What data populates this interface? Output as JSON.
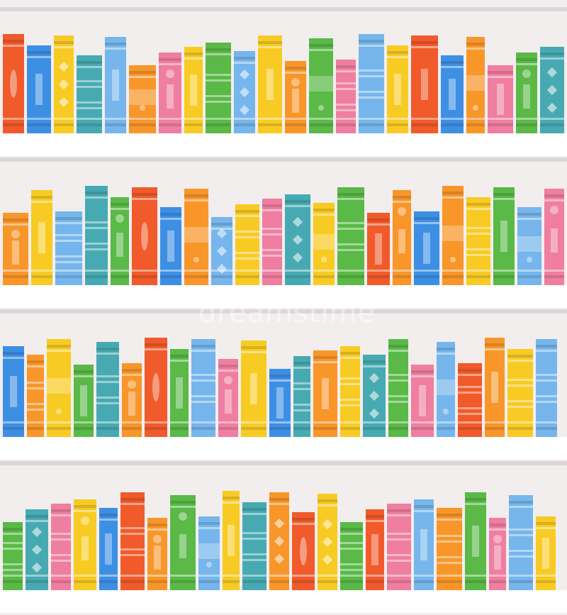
{
  "watermark": "dreamstime",
  "colors": {
    "red": "#f15a2b",
    "blue": "#3d8fe4",
    "lightblue": "#76b6ec",
    "yellow": "#f8cb24",
    "teal": "#47aab2",
    "orange": "#f8962a",
    "pink": "#ef7ea1",
    "green": "#5ab947",
    "background": "#f2eeee",
    "shelf": "#ffffff"
  },
  "shelves": [
    {
      "books": [
        {
          "color": "red",
          "deco": "oval"
        },
        {
          "color": "blue",
          "deco": "pane"
        },
        {
          "color": "yellow",
          "deco": "diamond"
        },
        {
          "color": "teal",
          "deco": "bars"
        },
        {
          "color": "lightblue",
          "deco": "pane"
        },
        {
          "color": "orange",
          "deco": "bands"
        },
        {
          "color": "pink",
          "deco": "dot"
        },
        {
          "color": "yellow",
          "deco": "pane"
        },
        {
          "color": "green",
          "deco": "bars"
        },
        {
          "color": "lightblue",
          "deco": "diamond"
        },
        {
          "color": "yellow",
          "deco": "pane"
        },
        {
          "color": "orange",
          "deco": "dot"
        },
        {
          "color": "green",
          "deco": "bands"
        },
        {
          "color": "pink",
          "deco": "bars"
        },
        {
          "color": "lightblue",
          "deco": "bars"
        },
        {
          "color": "yellow",
          "deco": "pane"
        },
        {
          "color": "red",
          "deco": "pane"
        },
        {
          "color": "blue",
          "deco": "pane"
        },
        {
          "color": "orange",
          "deco": "bands"
        },
        {
          "color": "pink",
          "deco": "pane"
        },
        {
          "color": "green",
          "deco": "dot"
        },
        {
          "color": "teal",
          "deco": "diamond"
        }
      ]
    },
    {
      "books": [
        {
          "color": "orange",
          "deco": "dot"
        },
        {
          "color": "yellow",
          "deco": "pane"
        },
        {
          "color": "lightblue",
          "deco": "bars"
        },
        {
          "color": "teal",
          "deco": "bars"
        },
        {
          "color": "green",
          "deco": "dot"
        },
        {
          "color": "red",
          "deco": "oval"
        },
        {
          "color": "blue",
          "deco": "pane"
        },
        {
          "color": "orange",
          "deco": "bands"
        },
        {
          "color": "lightblue",
          "deco": "diamond"
        },
        {
          "color": "yellow",
          "deco": "bars"
        },
        {
          "color": "pink",
          "deco": "bars"
        },
        {
          "color": "teal",
          "deco": "diamond"
        },
        {
          "color": "yellow",
          "deco": "bands"
        },
        {
          "color": "green",
          "deco": "bars"
        },
        {
          "color": "red",
          "deco": "pane"
        },
        {
          "color": "orange",
          "deco": "dot"
        },
        {
          "color": "blue",
          "deco": "pane"
        },
        {
          "color": "orange",
          "deco": "bands"
        },
        {
          "color": "yellow",
          "deco": "bars"
        },
        {
          "color": "green",
          "deco": "pane"
        },
        {
          "color": "lightblue",
          "deco": "bands"
        },
        {
          "color": "pink",
          "deco": "dot"
        }
      ]
    },
    {
      "books": [
        {
          "color": "blue",
          "deco": "pane"
        },
        {
          "color": "orange",
          "deco": "bars"
        },
        {
          "color": "yellow",
          "deco": "bands"
        },
        {
          "color": "green",
          "deco": "pane"
        },
        {
          "color": "teal",
          "deco": "bars"
        },
        {
          "color": "orange",
          "deco": "dot"
        },
        {
          "color": "red",
          "deco": "oval"
        },
        {
          "color": "green",
          "deco": "pane"
        },
        {
          "color": "lightblue",
          "deco": "bars"
        },
        {
          "color": "pink",
          "deco": "dot"
        },
        {
          "color": "yellow",
          "deco": "pane"
        },
        {
          "color": "blue",
          "deco": "pane"
        },
        {
          "color": "teal",
          "deco": "bars"
        },
        {
          "color": "orange",
          "deco": "pane"
        },
        {
          "color": "yellow",
          "deco": "bars"
        },
        {
          "color": "teal",
          "deco": "diamond"
        },
        {
          "color": "green",
          "deco": "bars"
        },
        {
          "color": "pink",
          "deco": "pane"
        },
        {
          "color": "lightblue",
          "deco": "bands"
        },
        {
          "color": "red",
          "deco": "bars"
        },
        {
          "color": "orange",
          "deco": "pane"
        },
        {
          "color": "yellow",
          "deco": "bars"
        },
        {
          "color": "lightblue",
          "deco": "bars"
        }
      ]
    },
    {
      "books": [
        {
          "color": "green",
          "deco": "bars"
        },
        {
          "color": "teal",
          "deco": "diamond"
        },
        {
          "color": "pink",
          "deco": "bars"
        },
        {
          "color": "yellow",
          "deco": "dot"
        },
        {
          "color": "blue",
          "deco": "pane"
        },
        {
          "color": "red",
          "deco": "bars"
        },
        {
          "color": "orange",
          "deco": "dot"
        },
        {
          "color": "green",
          "deco": "dot"
        },
        {
          "color": "lightblue",
          "deco": "bands"
        },
        {
          "color": "yellow",
          "deco": "pane"
        },
        {
          "color": "teal",
          "deco": "bars"
        },
        {
          "color": "orange",
          "deco": "diamond"
        },
        {
          "color": "red",
          "deco": "oval"
        },
        {
          "color": "yellow",
          "deco": "diamond"
        },
        {
          "color": "green",
          "deco": "bars"
        },
        {
          "color": "red",
          "deco": "pane"
        },
        {
          "color": "pink",
          "deco": "bars"
        },
        {
          "color": "lightblue",
          "deco": "pane"
        },
        {
          "color": "orange",
          "deco": "bars"
        },
        {
          "color": "green",
          "deco": "pane"
        },
        {
          "color": "pink",
          "deco": "dot"
        },
        {
          "color": "lightblue",
          "deco": "bars"
        },
        {
          "color": "yellow",
          "deco": "pane"
        }
      ]
    }
  ]
}
